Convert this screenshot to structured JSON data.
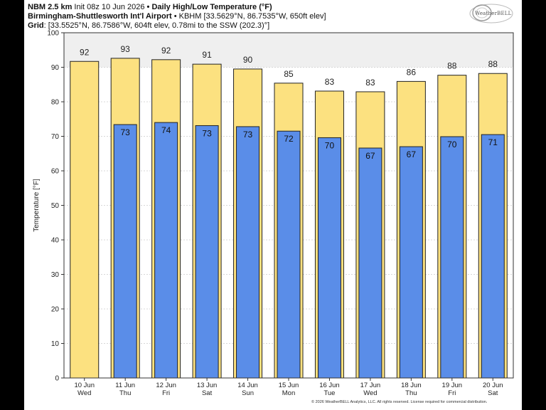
{
  "header": {
    "line1_bold": "NBM 2.5 km",
    "line1_init": " Init 08z 10 Jun 2026",
    "line1_sep": " • ",
    "line1_title": "Daily High/Low Temperature (°F)",
    "line2_bold": "Birmingham-Shuttlesworth Int'l Airport",
    "line2_rest": " • KBHM [33.5629°N, 86.7535°W, 650ft elev]",
    "line3_bold": "Grid",
    "line3_rest": ": [33.5525°N, 86.7586°W, 604ft elev, 0.78mi to the SSW (202.3)°]"
  },
  "logo": {
    "text": "WeatherBELL"
  },
  "footer": "© 2026 WeatherBELL Analytics, LLC. All rights reserved. License required for commercial distribution.",
  "colors": {
    "high_fill": "#fce180",
    "low_fill": "#5a8de8",
    "bar_stroke": "#222222",
    "grid": "#cccccc",
    "plot_top_band": "#efefef"
  },
  "chart_data": {
    "type": "bar",
    "ylabel": "Temperature [°F]",
    "ylim": [
      0,
      100
    ],
    "yticks": [
      0,
      10,
      20,
      30,
      40,
      50,
      60,
      70,
      80,
      90,
      100
    ],
    "grid": true,
    "categories": [
      {
        "date": "10 Jun",
        "day": "Wed"
      },
      {
        "date": "11 Jun",
        "day": "Thu"
      },
      {
        "date": "12 Jun",
        "day": "Fri"
      },
      {
        "date": "13 Jun",
        "day": "Sat"
      },
      {
        "date": "14 Jun",
        "day": "Sun"
      },
      {
        "date": "15 Jun",
        "day": "Mon"
      },
      {
        "date": "16 Jun",
        "day": "Tue"
      },
      {
        "date": "17 Jun",
        "day": "Wed"
      },
      {
        "date": "18 Jun",
        "day": "Thu"
      },
      {
        "date": "19 Jun",
        "day": "Fri"
      },
      {
        "date": "20 Jun",
        "day": "Sat"
      }
    ],
    "series": [
      {
        "key": "high",
        "values": [
          91.7,
          92.6,
          92.2,
          90.9,
          89.5,
          85.4,
          83.1,
          82.9,
          85.9,
          87.7,
          88.2
        ],
        "labels": [
          "92",
          "93",
          "92",
          "91",
          "90",
          "85",
          "83",
          "83",
          "86",
          "88",
          "88"
        ]
      },
      {
        "key": "low",
        "values": [
          null,
          73.4,
          74.0,
          73.1,
          72.8,
          71.5,
          69.6,
          66.6,
          67.0,
          69.9,
          70.5
        ],
        "labels": [
          "",
          "73",
          "74",
          "73",
          "73",
          "72",
          "70",
          "67",
          "67",
          "70",
          "71"
        ]
      }
    ]
  }
}
